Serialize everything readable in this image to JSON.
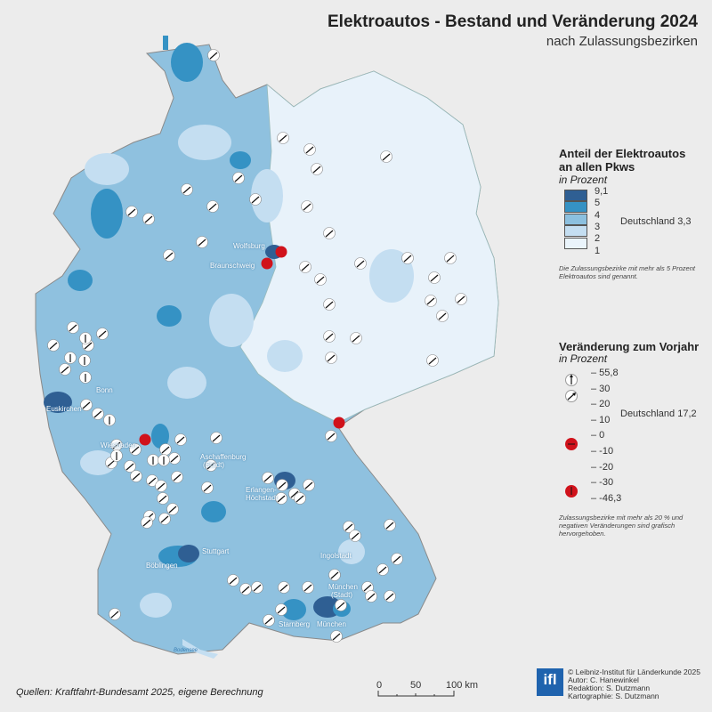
{
  "header": {
    "title": "Elektroautos - Bestand und Veränderung 2024",
    "subtitle": "nach Zulassungsbezirken"
  },
  "legend_share": {
    "title_line1": "Anteil der Elektroautos",
    "title_line2": "an allen Pkws",
    "unit": "in Prozent",
    "breaks": [
      "9,1",
      "5",
      "4",
      "3",
      "2",
      "1"
    ],
    "colors": [
      "#2f5f93",
      "#3592c4",
      "#8cc0df",
      "#c4def1",
      "#eaf4fb"
    ],
    "national": "Deutschland 3,3",
    "note_line1": "Die Zulassungsbezirke mit mehr als 5 Prozent",
    "note_line2": "Elektroautos sind genannt."
  },
  "legend_change": {
    "title": "Veränderung zum Vorjahr",
    "unit": "in Prozent",
    "ticks": [
      "55,8",
      "30",
      "20",
      "10",
      "0",
      "-10",
      "-20",
      "-30",
      "-46,3"
    ],
    "national": "Deutschland 17,2",
    "note_line1": "Zulassungsbezirke mit mehr als 20 % und",
    "note_line2": "negativen Veränderungen sind grafisch",
    "note_line3": "hervorgehoben.",
    "negative_color": "#d0121b"
  },
  "map_labels": {
    "wolfsburg": "Wolfsburg",
    "braunschweig": "Braunschweig",
    "bonn": "Bonn",
    "euskirchen": "Euskirchen",
    "wiesbaden": "Wiesbaden",
    "aschaffenburg": "Aschaffenburg",
    "aschaffenburg2": "(Stadt)",
    "erlangen": "Erlangen-",
    "erlangen2": "Höchstadt",
    "stuttgart": "Stuttgart",
    "boeblingen": "Böblingen",
    "ingolstadt": "Ingolstadt",
    "muenchen_stadt": "München",
    "muenchen_stadt2": "(Stadt)",
    "muenchen": "München",
    "starnberg": "Starnberg",
    "bodensee": "Bodensee"
  },
  "scale": {
    "t0": "0",
    "t50": "50",
    "t100": "100 km"
  },
  "source": "Quellen: Kraftfahrt-Bundesamt 2025, eigene Berechnung",
  "credits": {
    "logo": "ifl",
    "line1": "© Leibniz-Institut für Länderkunde 2025",
    "line2": "Autor: C. Hanewinkel",
    "line3": "Redaktion: S. Dutzmann",
    "line4": "Kartographie: S. Dutzmann"
  }
}
